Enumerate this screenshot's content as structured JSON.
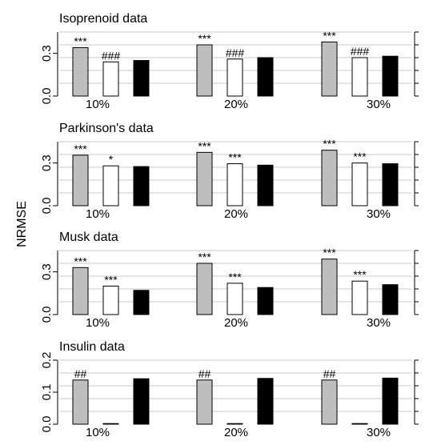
{
  "chart_data": {
    "type": "bar",
    "ylabel": "NRMSE",
    "colors": {
      "method_1": "#bebebe",
      "method_2": "#ffffff",
      "method_3": "#000000"
    },
    "panels": [
      {
        "title": "Isoprenoid data",
        "ylim": [
          0,
          0.45
        ],
        "yticks": [
          "0.0",
          "0.3"
        ],
        "categories": [
          "10%",
          "20%",
          "30%"
        ],
        "series": [
          {
            "values": [
              0.34,
              0.36,
              0.38
            ],
            "labels": [
              "***",
              "***",
              "***"
            ]
          },
          {
            "values": [
              0.24,
              0.26,
              0.27
            ],
            "labels": [
              "###",
              "###",
              "###"
            ]
          },
          {
            "values": [
              0.25,
              0.27,
              0.28
            ],
            "labels": [
              "",
              "",
              ""
            ]
          }
        ]
      },
      {
        "title": "Parkinson's data",
        "ylim": [
          0,
          0.45
        ],
        "yticks": [
          "0.0",
          "0.3"
        ],
        "categories": [
          "10%",
          "20%",
          "30%"
        ],
        "series": [
          {
            "values": [
              0.355,
              0.375,
              0.39
            ],
            "labels": [
              "***",
              "***",
              "***"
            ]
          },
          {
            "values": [
              0.28,
              0.295,
              0.3
            ],
            "labels": [
              "*",
              "***",
              "***"
            ]
          },
          {
            "values": [
              0.275,
              0.285,
              0.295
            ],
            "labels": [
              "",
              "",
              ""
            ]
          }
        ]
      },
      {
        "title": "Musk data",
        "ylim": [
          0,
          0.45
        ],
        "yticks": [
          "0.0",
          "0.3"
        ],
        "categories": [
          "10%",
          "20%",
          "30%"
        ],
        "series": [
          {
            "values": [
              0.33,
              0.36,
              0.39
            ],
            "labels": [
              "***",
              "***",
              "***"
            ]
          },
          {
            "values": [
              0.2,
              0.22,
              0.235
            ],
            "labels": [
              "***",
              "***",
              "***"
            ]
          },
          {
            "values": [
              0.17,
              0.19,
              0.21
            ],
            "labels": [
              "",
              "",
              ""
            ]
          }
        ]
      },
      {
        "title": "Insulin data",
        "ylim": [
          0,
          0.2
        ],
        "yticks": [
          "0.0",
          "0.1",
          "0.2"
        ],
        "categories": [
          "10%",
          "20%",
          "30%"
        ],
        "series": [
          {
            "values": [
              0.138,
              0.138,
              0.138
            ],
            "labels": [
              "##",
              "##",
              "##"
            ]
          },
          {
            "values": [
              0.002,
              0.002,
              0.002
            ],
            "labels": [
              "",
              "",
              ""
            ]
          },
          {
            "values": [
              0.142,
              0.143,
              0.144
            ],
            "labels": [
              "",
              "",
              ""
            ]
          }
        ]
      }
    ]
  }
}
